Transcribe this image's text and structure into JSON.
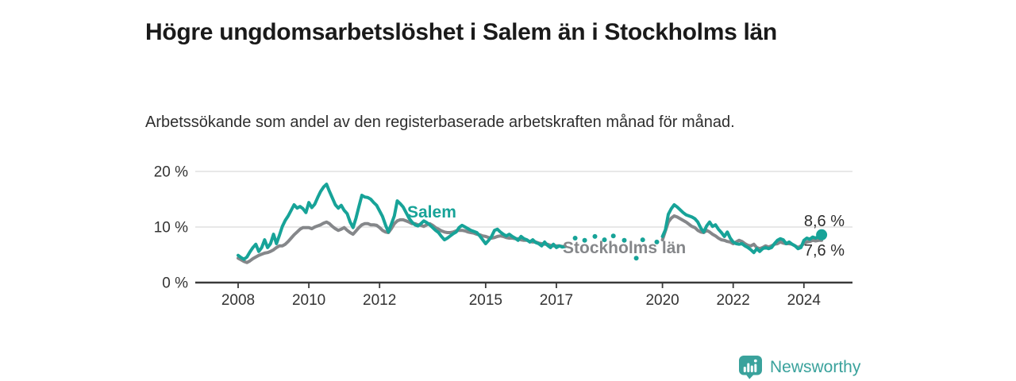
{
  "header": {
    "title": "Högre ungdomsarbetslöshet i Salem än i Stockholms län",
    "subtitle": "Arbetssökande som andel av den registerbaserade arbetskraften månad för månad."
  },
  "footer": {
    "brand": "Newsworthy",
    "brand_color": "#3aa29c"
  },
  "chart_data": {
    "type": "line",
    "unit": "%",
    "ylim": [
      0,
      20
    ],
    "xlim": [
      2007.6,
      2025.2
    ],
    "grid": "horizontal-light",
    "y_ticks": [
      {
        "value": 0,
        "label": "0 %"
      },
      {
        "value": 10,
        "label": "10 %"
      },
      {
        "value": 20,
        "label": "20 %"
      }
    ],
    "x_ticks": [
      {
        "value": 2008,
        "label": "2008"
      },
      {
        "value": 2010,
        "label": "2010"
      },
      {
        "value": 2012,
        "label": "2012"
      },
      {
        "value": 2015,
        "label": "2015"
      },
      {
        "value": 2017,
        "label": "2017"
      },
      {
        "value": 2020,
        "label": "2020"
      },
      {
        "value": 2022,
        "label": "2022"
      },
      {
        "value": 2024,
        "label": "2024"
      }
    ],
    "series": [
      {
        "name": "Stockholms län",
        "color": "#85878a",
        "end_label": "7,6 %",
        "last_value": 7.6,
        "segments": [
          {
            "type": "line",
            "start": 2008.0,
            "step_months": 1,
            "values": [
              4.4,
              4.1,
              3.8,
              3.6,
              3.9,
              4.3,
              4.6,
              4.9,
              5.1,
              5.3,
              5.4,
              5.6,
              5.9,
              6.3,
              6.6,
              6.6,
              6.9,
              7.4,
              8.0,
              8.6,
              9.1,
              9.6,
              9.9,
              9.9,
              9.9,
              9.7,
              10.0,
              10.2,
              10.4,
              10.7,
              10.9,
              10.6,
              10.1,
              9.7,
              9.4,
              9.6,
              9.9,
              9.4,
              9.0,
              8.7,
              9.3,
              9.9,
              10.4,
              10.6,
              10.6,
              10.4,
              10.4,
              10.3,
              9.9,
              9.4,
              9.1,
              9.0,
              9.7,
              10.6,
              11.1,
              11.3,
              11.3,
              11.1,
              10.9,
              10.6,
              10.6,
              10.4,
              10.3,
              10.1,
              10.4,
              10.6,
              10.3,
              9.9,
              9.6,
              9.3,
              9.1,
              9.0,
              9.0,
              9.1,
              9.3,
              9.4,
              9.4,
              9.3,
              9.1,
              9.0,
              8.9,
              8.7,
              8.6,
              8.4,
              8.3,
              8.1,
              8.0,
              8.1,
              8.3,
              8.4,
              8.3,
              8.1,
              8.0,
              8.0,
              7.9,
              7.9,
              7.7,
              7.6,
              7.6,
              7.4,
              7.3,
              7.3,
              7.1,
              7.0,
              6.9,
              6.9,
              6.7,
              6.6,
              6.6,
              6.6,
              6.5,
              6.5
            ]
          },
          {
            "type": "line",
            "start": 2020.0,
            "step_months": 1,
            "values": [
              7.7,
              9.3,
              10.9,
              11.6,
              12.0,
              11.8,
              11.5,
              11.2,
              10.9,
              10.5,
              10.1,
              9.9,
              9.4,
              9.1,
              9.0,
              9.4,
              9.1,
              8.7,
              8.4,
              8.0,
              7.7,
              7.6,
              7.4,
              7.3,
              7.0,
              7.3,
              7.6,
              7.4,
              7.0,
              6.7,
              6.6,
              6.9,
              6.3,
              6.1,
              6.3,
              6.6,
              6.4,
              6.6,
              6.9,
              7.0,
              7.3,
              7.1,
              7.0,
              7.0,
              6.9,
              6.6,
              6.3,
              6.6,
              7.0,
              7.3,
              7.4,
              7.6,
              7.5,
              7.6,
              7.6
            ]
          }
        ]
      },
      {
        "name": "Salem",
        "color": "#17a398",
        "end_label": "8,6 %",
        "last_value": 8.6,
        "segments": [
          {
            "type": "line",
            "start": 2008.0,
            "step_months": 1,
            "values": [
              4.9,
              4.5,
              4.2,
              4.6,
              5.5,
              6.3,
              6.9,
              5.6,
              6.3,
              7.7,
              6.3,
              7.0,
              8.7,
              7.0,
              8.5,
              10.1,
              11.2,
              12.0,
              13.0,
              14.0,
              13.4,
              13.7,
              13.3,
              12.6,
              14.4,
              13.5,
              14.1,
              15.3,
              16.4,
              17.2,
              17.7,
              16.4,
              15.2,
              14.0,
              13.4,
              13.9,
              13.0,
              12.4,
              10.9,
              9.9,
              11.6,
              13.7,
              15.7,
              15.4,
              15.3,
              15.0,
              14.4,
              13.9,
              12.9,
              11.9,
              10.4,
              9.1,
              10.5,
              12.0,
              14.7,
              14.2,
              13.6,
              12.6,
              11.6,
              10.9,
              10.4,
              10.2,
              10.6,
              11.1,
              10.8,
              10.4,
              9.9,
              9.4,
              9.0,
              8.3,
              7.7,
              8.0,
              8.4,
              8.8,
              9.1,
              9.9,
              10.3,
              10.0,
              9.7,
              9.4,
              9.2,
              9.0,
              8.4,
              7.7,
              7.0,
              7.6,
              8.3,
              9.4,
              9.6,
              9.1,
              8.7,
              8.4,
              8.7,
              8.3,
              8.0,
              7.6,
              8.3,
              7.9,
              7.7,
              7.3,
              7.7,
              7.2,
              7.0,
              6.6,
              7.3,
              6.7,
              6.3,
              6.9,
              6.3,
              6.6,
              6.4,
              6.5
            ]
          },
          {
            "type": "dots",
            "points": [
              [
                2017.53,
                8.0
              ],
              [
                2017.8,
                7.6
              ],
              [
                2018.09,
                8.3
              ],
              [
                2018.36,
                7.7
              ],
              [
                2018.61,
                8.4
              ],
              [
                2018.92,
                7.6
              ],
              [
                2019.26,
                4.4
              ],
              [
                2019.44,
                7.7
              ],
              [
                2019.84,
                7.3
              ]
            ]
          },
          {
            "type": "line",
            "start": 2020.0,
            "step_months": 1,
            "end_marker": true,
            "values": [
              8.3,
              9.5,
              12.3,
              13.3,
              14.0,
              13.6,
              13.1,
              12.6,
              12.2,
              12.0,
              11.8,
              11.5,
              10.9,
              9.8,
              9.1,
              10.2,
              10.9,
              10.1,
              10.4,
              9.6,
              9.0,
              8.3,
              9.1,
              8.0,
              7.3,
              7.0,
              6.9,
              7.0,
              6.6,
              6.3,
              5.9,
              5.4,
              6.1,
              5.6,
              6.1,
              6.3,
              6.1,
              6.3,
              7.0,
              7.6,
              7.9,
              7.7,
              7.0,
              7.3,
              6.9,
              6.6,
              6.1,
              6.3,
              7.6,
              8.0,
              7.8,
              8.2,
              8.0,
              8.3,
              8.6
            ]
          }
        ]
      }
    ]
  }
}
